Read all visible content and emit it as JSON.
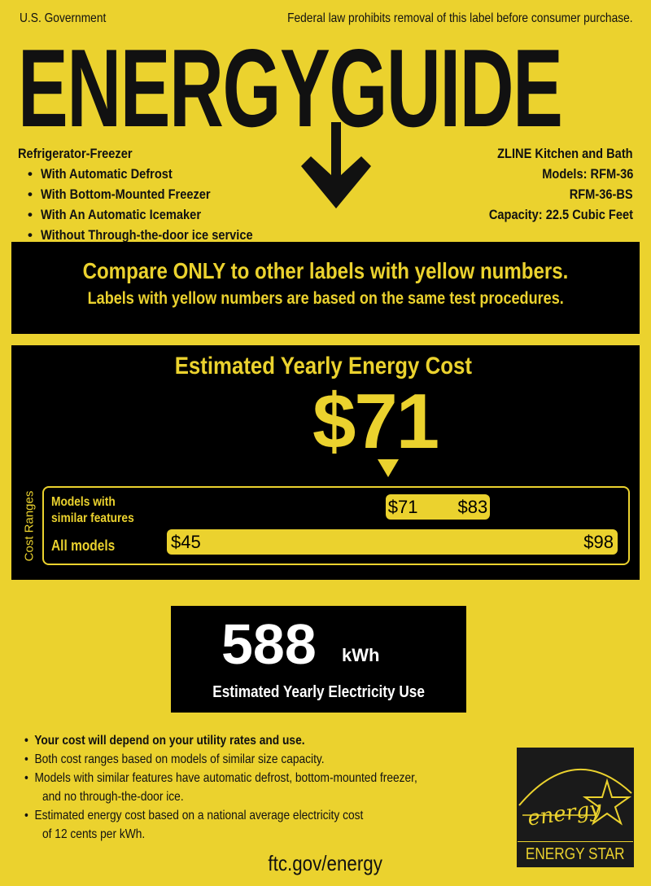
{
  "header": {
    "left": "U.S. Government",
    "right": "Federal law prohibits removal of this label before consumer purchase.",
    "title": "ENERGYGUIDE"
  },
  "product": {
    "type": "Refrigerator-Freezer",
    "features": [
      "With Automatic Defrost",
      "With Bottom-Mounted Freezer",
      "With An Automatic Icemaker",
      "Without Through-the-door ice service"
    ]
  },
  "maker": {
    "brand": "ZLINE Kitchen and Bath",
    "models": "Models: RFM-36",
    "model2": "RFM-36-BS",
    "capacity": "Capacity: 22.5 Cubic Feet"
  },
  "compare": {
    "line1": "Compare ONLY to other labels with yellow numbers.",
    "line2": "Labels with yellow numbers are based on the same test procedures."
  },
  "cost": {
    "heading": "Estimated Yearly Energy Cost",
    "value": "$71",
    "value_num": 71,
    "side_label": "Cost Ranges",
    "similar": {
      "label1": "Models with",
      "label2": "similar features",
      "min": "$71",
      "max": "$83",
      "min_num": 71,
      "max_num": 83
    },
    "all": {
      "label": "All models",
      "min": "$45",
      "max": "$98",
      "min_num": 45,
      "max_num": 98
    }
  },
  "electricity": {
    "value": "588",
    "unit": "kWh",
    "label": "Estimated Yearly Electricity Use"
  },
  "notes": {
    "n1": "Your cost will depend on your utility rates and use.",
    "n2": "Both cost ranges based on models of similar size capacity.",
    "n3a": "Models with similar features have automatic defrost, bottom-mounted freezer,",
    "n3b": "and no through-the-door ice.",
    "n4a": "Estimated energy cost based on a national average electricity cost",
    "n4b": "of 12 cents per kWh."
  },
  "footer": {
    "url": "ftc.gov/energy"
  },
  "energy_star": {
    "script": "energy",
    "label": "ENERGY STAR"
  },
  "colors": {
    "label_yellow": "#EBD22E",
    "black": "#000000"
  }
}
